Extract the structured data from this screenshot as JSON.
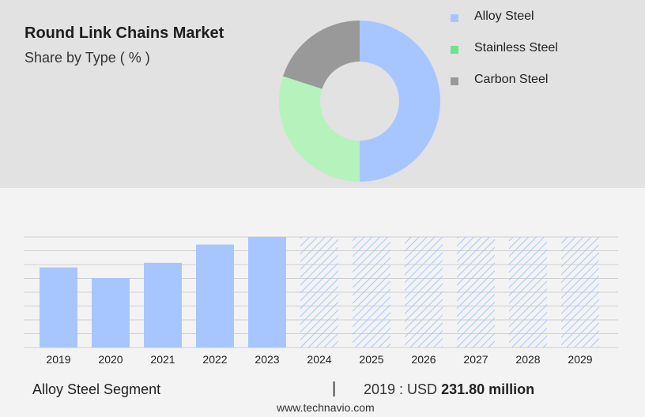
{
  "title": "Round Link Chains Market",
  "subtitle": "Share by Type ( % )",
  "legend": [
    {
      "label": "Alloy Steel",
      "color": "#a7c6ff"
    },
    {
      "label": "Stainless Steel",
      "color": "#6ee38a"
    },
    {
      "label": "Carbon Steel",
      "color": "#999999"
    }
  ],
  "footer": {
    "segment": "Alloy Steel Segment",
    "separator": "|",
    "year_label": "2019 : USD",
    "value": "231.80 million",
    "website": "www.technavio.com"
  },
  "chart_data": [
    {
      "type": "pie",
      "title": "Share by Type ( % )",
      "categories": [
        "Alloy Steel",
        "Stainless Steel",
        "Carbon Steel"
      ],
      "values": [
        50,
        30,
        20
      ],
      "colors": [
        "#a7c6ff",
        "#b6f2bc",
        "#999999"
      ],
      "donut": true
    },
    {
      "type": "bar",
      "categories": [
        "2019",
        "2020",
        "2021",
        "2022",
        "2023",
        "2024",
        "2025",
        "2026",
        "2027",
        "2028",
        "2029"
      ],
      "values": [
        231.8,
        201,
        245,
        298,
        320,
        320,
        320,
        320,
        320,
        320,
        320
      ],
      "forecast_from": "2024",
      "ylim": [
        0,
        320
      ],
      "grid": true,
      "bar_color": "#a7c6ff"
    }
  ]
}
